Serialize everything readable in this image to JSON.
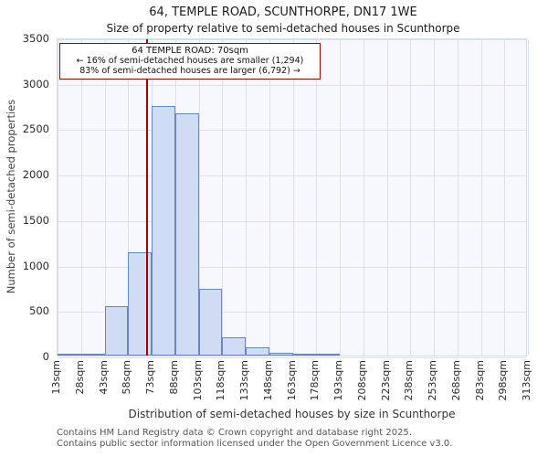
{
  "chart_data": {
    "type": "bar",
    "title": "64, TEMPLE ROAD, SCUNTHORPE, DN17 1WE",
    "subtitle": "Size of property relative to semi-detached houses in Scunthorpe",
    "xlabel": "Distribution of semi-detached houses by size in Scunthorpe",
    "ylabel": "Number of semi-detached properties",
    "xlim": [
      13,
      313
    ],
    "ylim": [
      0,
      3500
    ],
    "ytick_step": 500,
    "bin_width": 15,
    "bin_starts": [
      13,
      28,
      43,
      58,
      73,
      88,
      103,
      118,
      133,
      148,
      163,
      178,
      193,
      208,
      223,
      238,
      253,
      268,
      283,
      298
    ],
    "values": [
      5,
      25,
      540,
      1140,
      2750,
      2670,
      730,
      200,
      90,
      35,
      15,
      10,
      0,
      0,
      0,
      0,
      0,
      0,
      0,
      0
    ],
    "tick_labels": [
      "13sqm",
      "28sqm",
      "43sqm",
      "58sqm",
      "73sqm",
      "88sqm",
      "103sqm",
      "118sqm",
      "133sqm",
      "148sqm",
      "163sqm",
      "178sqm",
      "193sqm",
      "208sqm",
      "223sqm",
      "238sqm",
      "253sqm",
      "268sqm",
      "283sqm",
      "298sqm",
      "313sqm"
    ],
    "marker": {
      "value_sqm": 70,
      "line_color": "#a40000"
    },
    "bar_fill": "#cfdcf3",
    "bar_edge": "#6687c4",
    "grid": true,
    "legend": "none"
  },
  "annotation": {
    "line1": "64 TEMPLE ROAD: 70sqm",
    "line2": "← 16% of semi-detached houses are smaller (1,294)",
    "line3": "83% of semi-detached houses are larger (6,792) →"
  },
  "footer": {
    "line1": "Contains HM Land Registry data © Crown copyright and database right 2025.",
    "line2": "Contains public sector information licensed under the Open Government Licence v3.0."
  }
}
